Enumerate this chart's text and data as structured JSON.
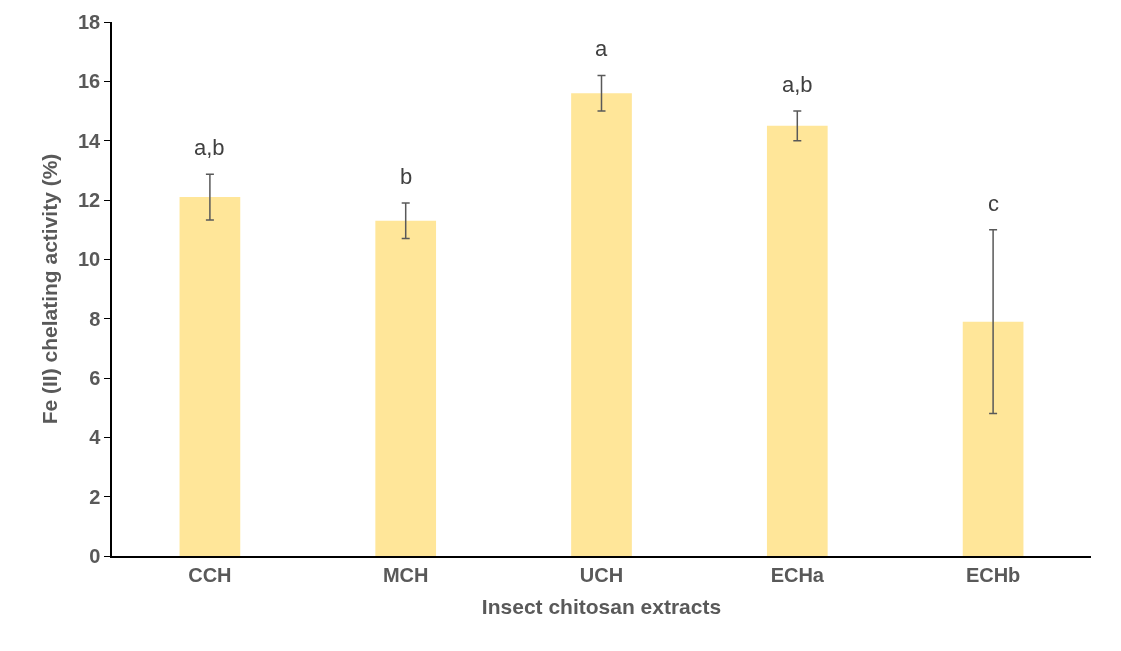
{
  "chart_data": {
    "type": "bar",
    "xlabel": "Insect chitosan extracts",
    "ylabel": "Fe (II) chelating activity (%)",
    "categories": [
      "CCH",
      "MCH",
      "UCH",
      "ECHa",
      "ECHb"
    ],
    "values": [
      12.1,
      11.3,
      15.6,
      14.5,
      7.9
    ],
    "errors": [
      0.77,
      0.6,
      0.6,
      0.5,
      3.1
    ],
    "color": "#ffe699",
    "ylim": [
      0,
      18
    ],
    "yticks": [
      0,
      2,
      4,
      6,
      8,
      10,
      12,
      14,
      16,
      18
    ],
    "annotations": [
      "a,b",
      "b",
      "a",
      "a,b",
      "c"
    ]
  }
}
